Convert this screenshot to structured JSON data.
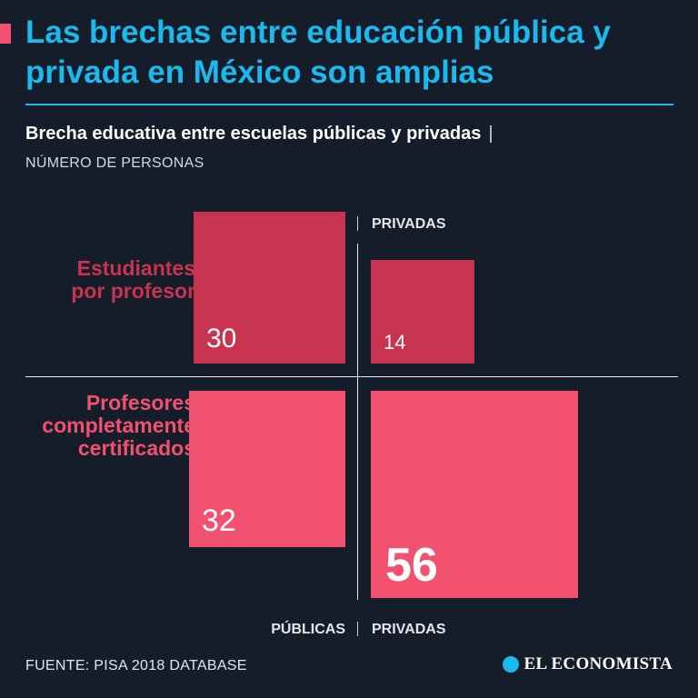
{
  "header": {
    "title": "Las brechas entre educación pública y privada en México son amplias"
  },
  "chart_header": {
    "subtitle": "Brecha educativa entre escuelas públicas y privadas",
    "separator": "|",
    "units": "NÚMERO DE PERSONAS"
  },
  "chart_data": {
    "type": "bar",
    "title": "Brecha educativa entre escuelas públicas y privadas",
    "subtitle": "NÚMERO DE PERSONAS",
    "columns": [
      "PÚBLICAS",
      "PRIVADAS"
    ],
    "rows": [
      {
        "name": "Estudiantes por profesor",
        "label_lines": [
          "Estudiantes",
          "por profesor"
        ],
        "color": "#c8334f",
        "values": {
          "PÚBLICAS": 30,
          "PRIVADAS": 14
        }
      },
      {
        "name": "Profesores completamente certificados",
        "label_lines": [
          "Profesores",
          "completamente",
          "certificados"
        ],
        "color": "#f2506f",
        "values": {
          "PÚBLICAS": 32,
          "PRIVADAS": 56
        }
      }
    ],
    "encoding": "square area proportional to value",
    "xlabel": "",
    "ylabel": ""
  },
  "footer": {
    "source": "FUENTE: PISA 2018 DATABASE",
    "brand": "EL ECONOMISTA"
  },
  "colors": {
    "background": "#151d2a",
    "title": "#1ab9ee",
    "students": "#c8334f",
    "teachers": "#f2506f"
  }
}
